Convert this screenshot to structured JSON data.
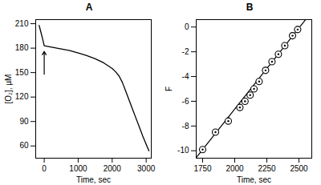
{
  "chart_data": [
    {
      "type": "line",
      "title": "A",
      "x_label": "Time, sec",
      "y_label": "[O₂], µM",
      "x": [
        -150,
        -100,
        -50,
        0,
        250,
        500,
        750,
        1000,
        1250,
        1500,
        1750,
        2000,
        2100,
        2200,
        2300,
        2400,
        2500,
        2600,
        2700,
        2800,
        2900,
        3000,
        3080
      ],
      "values": [
        208,
        200,
        192,
        183,
        181,
        179,
        177,
        174,
        171,
        167,
        162,
        155,
        151,
        146,
        138,
        127,
        116,
        105,
        94,
        83,
        72,
        62,
        54
      ],
      "color": "#000000",
      "xlim": [
        -250,
        3150
      ],
      "xticks": [
        0,
        1000,
        2000,
        3000
      ],
      "ylim": [
        45,
        215
      ],
      "yticks": [
        60,
        90,
        120,
        150,
        180,
        210
      ],
      "arrow": {
        "x": 0,
        "y": [
          148,
          176
        ]
      },
      "grid": false
    },
    {
      "type": "scatter",
      "title": "B",
      "x_label": "Time, sec",
      "y_label": "F",
      "x": [
        1750,
        1850,
        1950,
        2040,
        2080,
        2120,
        2150,
        2190,
        2240,
        2290,
        2340,
        2390,
        2450,
        2490
      ],
      "values": [
        -9.9,
        -8.5,
        -7.6,
        -6.5,
        -6.0,
        -5.5,
        -5.0,
        -4.4,
        -3.5,
        -2.8,
        -2.2,
        -1.5,
        -0.7,
        -0.2
      ],
      "marker": "circle_dot",
      "color": "#000000",
      "fit_line": {
        "x": [
          1700,
          2590
        ],
        "y": [
          -10.56,
          1.1
        ]
      },
      "xlim": [
        1700,
        2600
      ],
      "xticks": [
        1750,
        2000,
        2250,
        2500
      ],
      "ylim": [
        -10.6,
        0.6
      ],
      "yticks": [
        -10,
        -8,
        -6,
        -4,
        -2,
        0
      ],
      "grid": false
    }
  ]
}
